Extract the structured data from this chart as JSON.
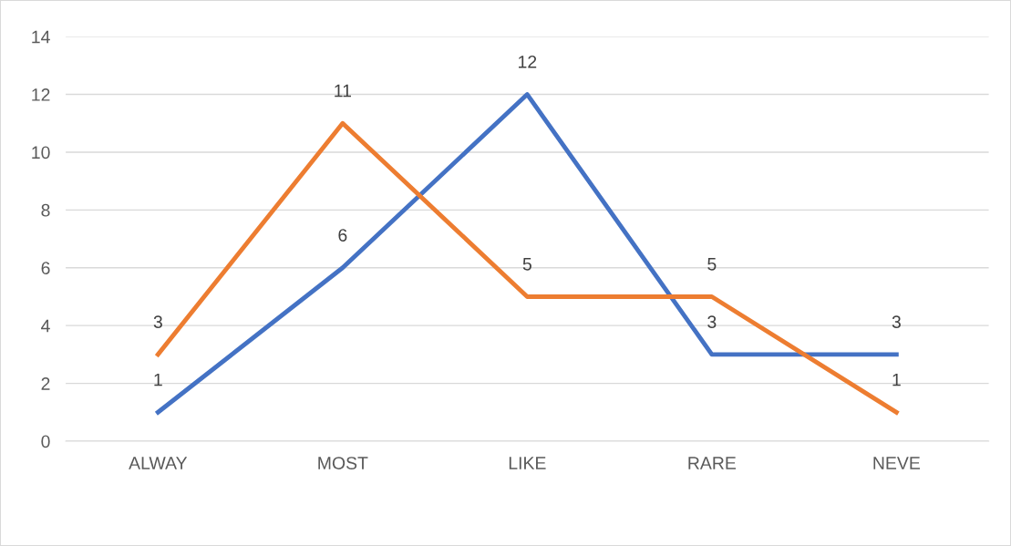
{
  "chart_data": {
    "type": "line",
    "categories": [
      "ALWAY",
      "MOST",
      "LIKE",
      "RARE",
      "NEVE"
    ],
    "series": [
      {
        "color": "#4472c4",
        "values": [
          1,
          6,
          12,
          3,
          3
        ]
      },
      {
        "color": "#ed7d31",
        "values": [
          3,
          11,
          5,
          5,
          1
        ]
      }
    ],
    "ylim": [
      0,
      14
    ],
    "yticks": [
      0,
      2,
      4,
      6,
      8,
      10,
      12,
      14
    ],
    "grid": "y",
    "data_labels": true,
    "line_style": "solid",
    "marker": "none"
  }
}
